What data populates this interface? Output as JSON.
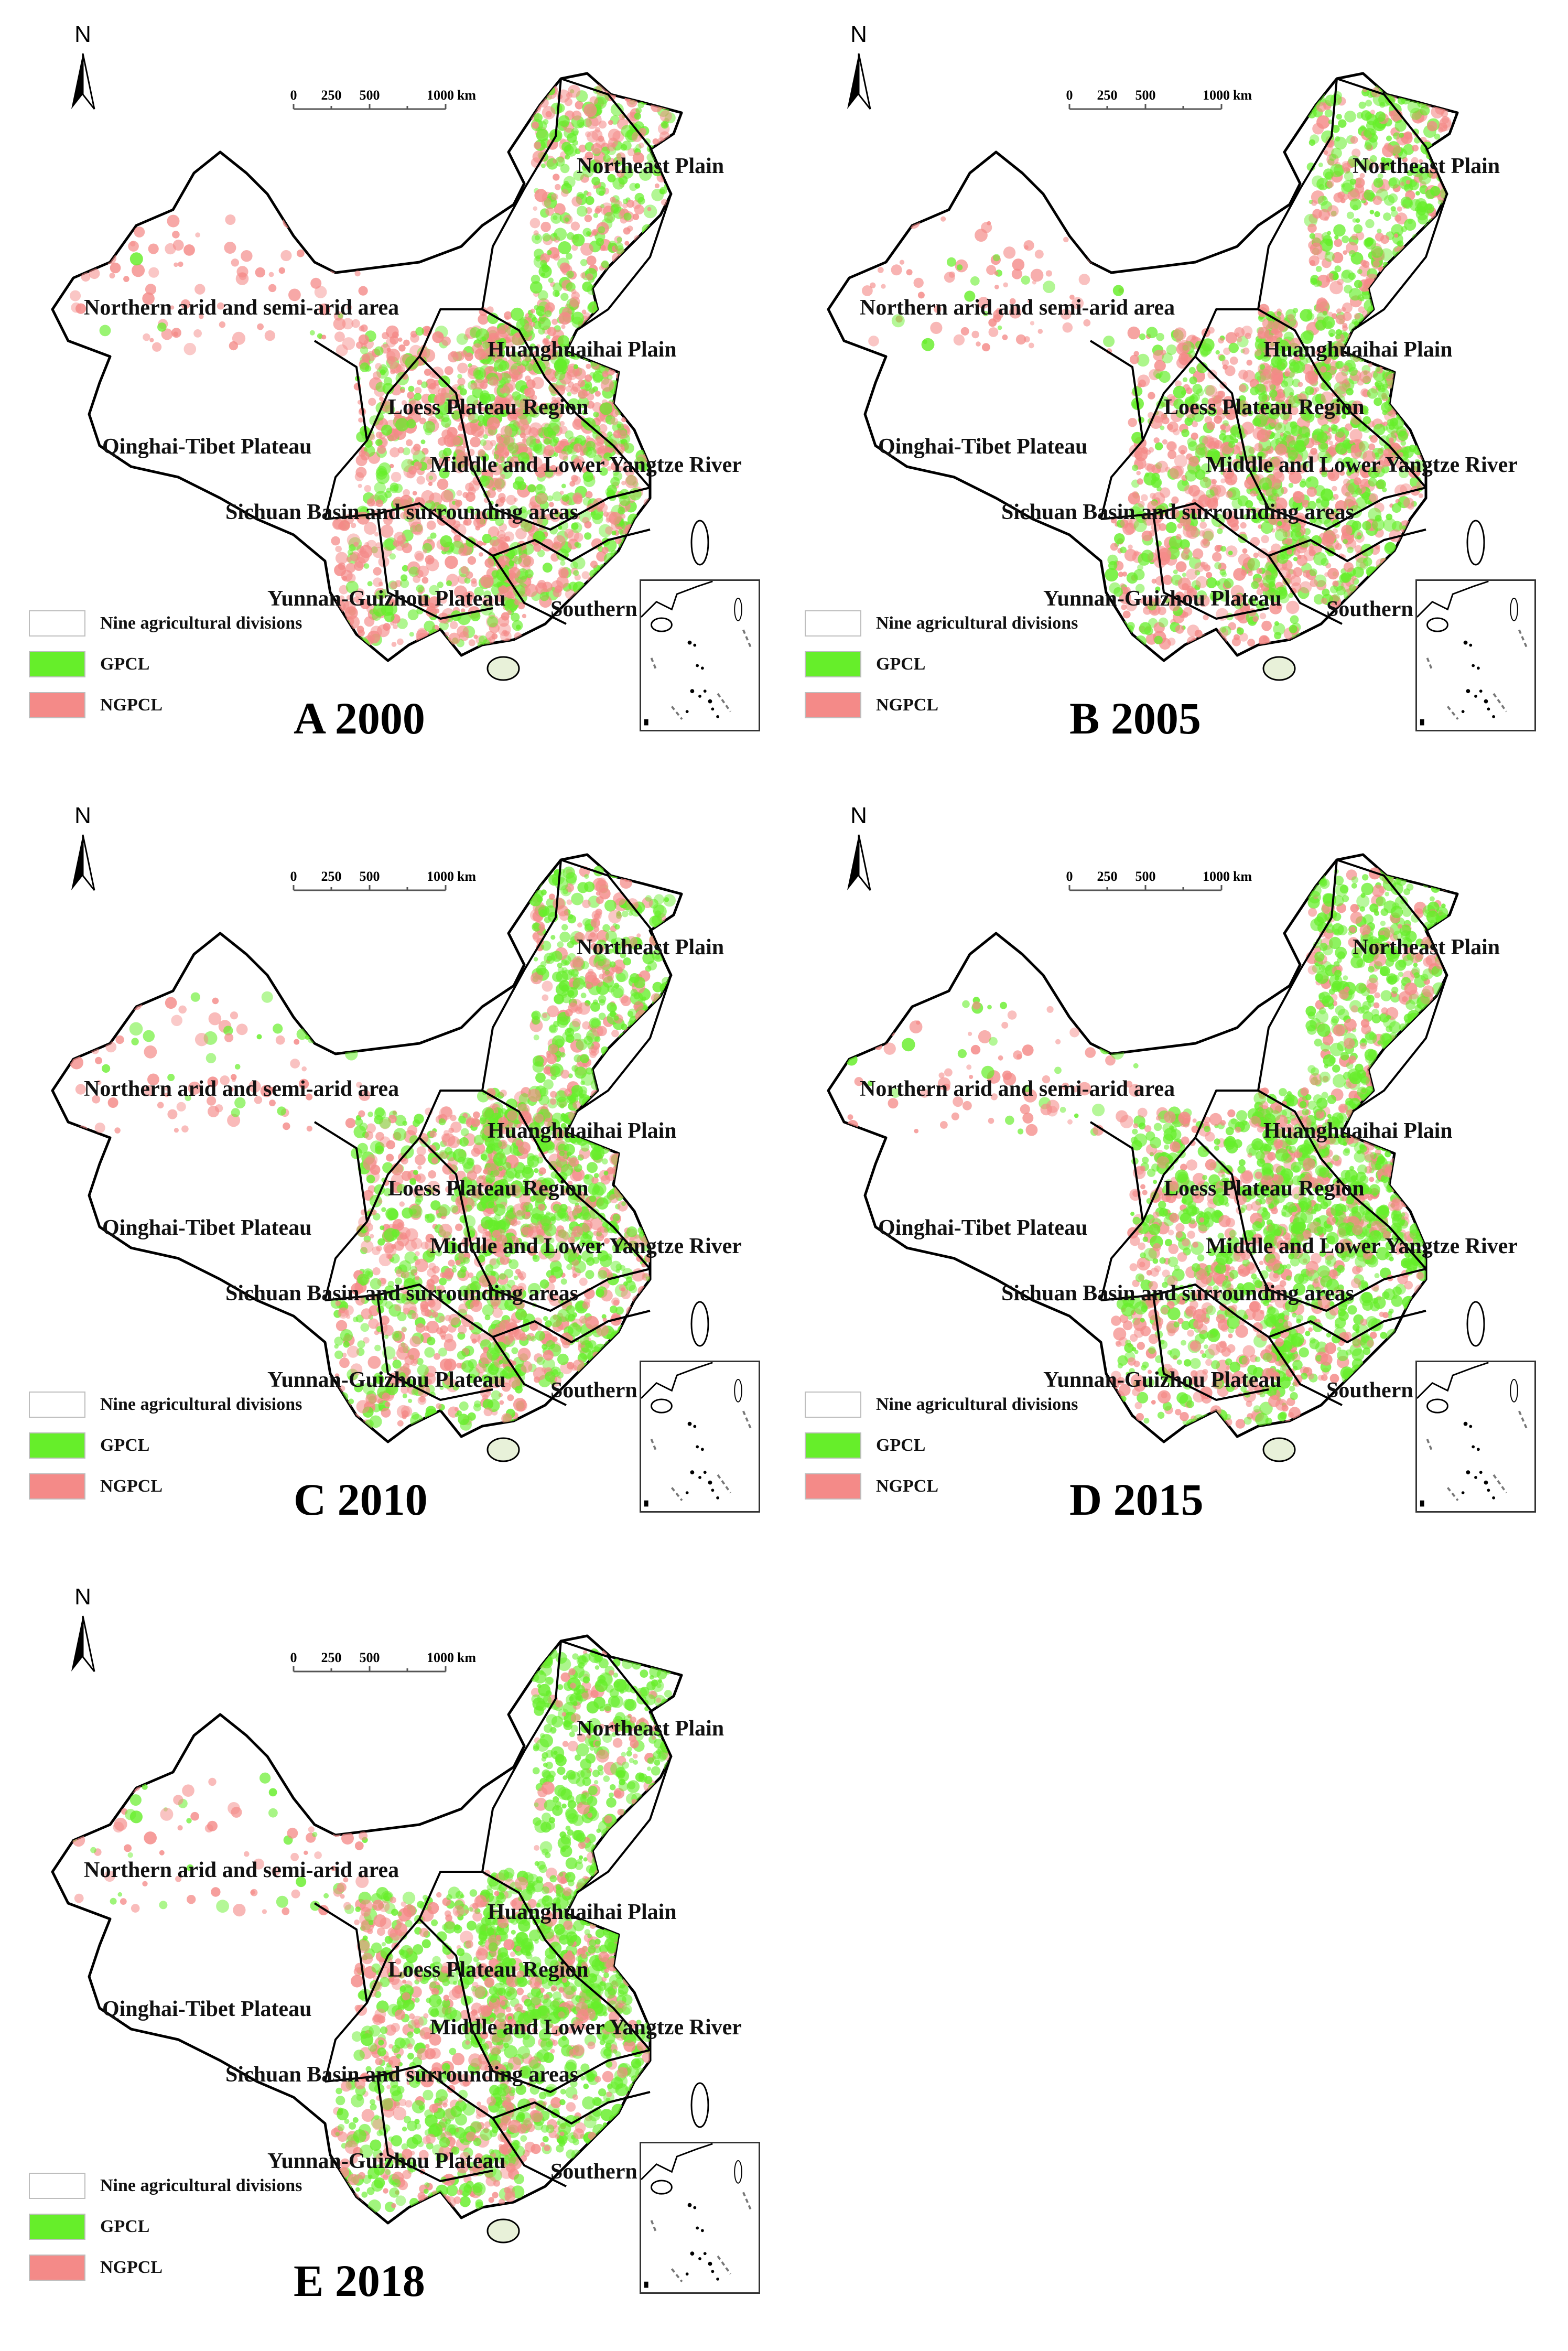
{
  "colors": {
    "gpcl": "#66ee2a",
    "ngpcl": "#f48a88",
    "divisions": "#ffffff",
    "border": "#000000"
  },
  "north": "N",
  "scale": {
    "ticks": [
      "0",
      "250",
      "500",
      "1000"
    ],
    "unit": "km"
  },
  "legend": {
    "divisions": "Nine agricultural divisions",
    "gpcl": "GPCL",
    "ngpcl": "NGPCL"
  },
  "regions": {
    "northeast": "Northeast Plain",
    "northern": "Northern arid and semi-arid area",
    "huang": "Huanghuaihai Plain",
    "loess": "Loess Plateau Region",
    "qinghai": "Qinghai-Tibet Plateau",
    "yangtze": "Middle and Lower Yangtze River",
    "sichuan": "Sichuan Basin and surrounding areas",
    "yunnan": "Yunnan-Guizhou Plateau",
    "southern": "Southern Region"
  },
  "panels": [
    {
      "id": "a",
      "title": "A 2000",
      "gpcl_share": 0.35
    },
    {
      "id": "b",
      "title": "B 2005",
      "gpcl_share": 0.45
    },
    {
      "id": "c",
      "title": "C 2010",
      "gpcl_share": 0.5
    },
    {
      "id": "d",
      "title": "D 2015",
      "gpcl_share": 0.55
    },
    {
      "id": "e",
      "title": "E 2018",
      "gpcl_share": 0.6
    }
  ]
}
